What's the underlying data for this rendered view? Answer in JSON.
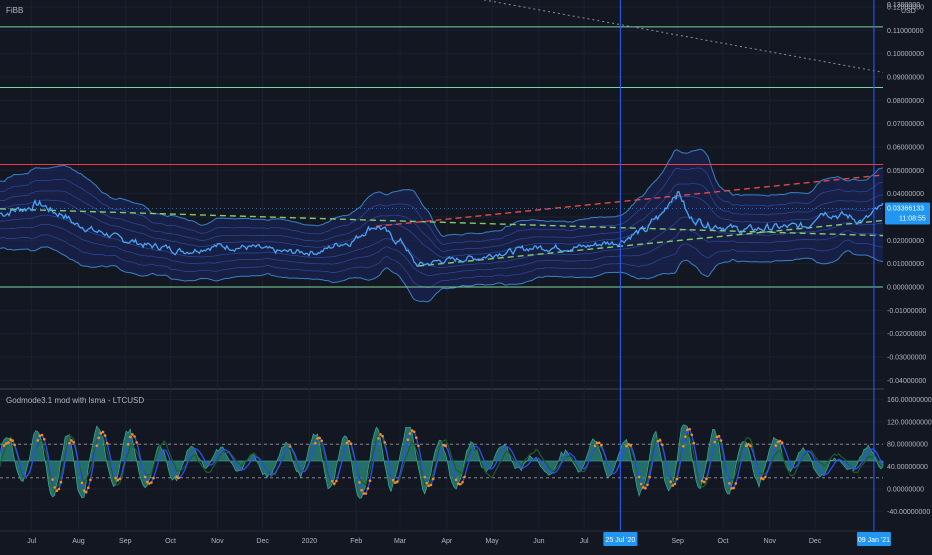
{
  "colors": {
    "background": "#131722",
    "grid": "#1c2030",
    "price_line": "#4aa3f5",
    "band_fill": "#1a2350",
    "band_line": "#2e4fa8",
    "resistance_red": "#f23645",
    "level_green": "#7fd3a0",
    "trend_red_dashed": "#e04848",
    "trend_green_dashed": "#86c96a",
    "crosshair": "#2962ff",
    "axis_tag_bg": "#2196f3",
    "osc_fill": "#2a8c7f",
    "osc_blue": "#2e4ff0",
    "osc_orange": "#ff8c1a",
    "osc_dark_green": "#1e5b2e"
  },
  "top_pane": {
    "indicator_label": "FiBB",
    "currency": "USD",
    "price_axis": [
      "0.12000000",
      "0.11000000",
      "0.10000000",
      "0.09000000",
      "0.08000000",
      "0.07000000",
      "0.06000000",
      "0.05000000",
      "0.04000000",
      "0.03000000",
      "0.02000000",
      "0.01000000",
      "0.00000000",
      "-0.01000000",
      "-0.02000000",
      "-0.03000000",
      "-0.04000000"
    ],
    "top_partial_label": "0.1300000",
    "price_axis_values": [
      0.12,
      0.11,
      0.1,
      0.09,
      0.08,
      0.07,
      0.06,
      0.05,
      0.04,
      0.03,
      0.02,
      0.01,
      0.0,
      -0.01,
      -0.02,
      -0.03,
      -0.04
    ],
    "current_price": "0.03366133",
    "countdown": "11:08:55",
    "horizontal_levels": [
      {
        "value": 0.1115,
        "color": "level_green"
      },
      {
        "value": 0.0855,
        "color": "level_green"
      },
      {
        "value": 0.0525,
        "color": "resistance_red"
      },
      {
        "value": 0.0,
        "color": "level_green"
      }
    ]
  },
  "bottom_pane": {
    "indicator_label": "Godmode3.1 mod with lsma - LTCUSD",
    "axis": [
      "160.00000000",
      "120.00000000",
      "80.00000000",
      "40.00000000",
      "0.00000000",
      "-40.00000000"
    ],
    "axis_values": [
      160,
      120,
      80,
      40,
      0,
      -40
    ],
    "overbought": 80,
    "oversold": 20
  },
  "time_axis": {
    "labels": [
      "Jul",
      "Aug",
      "Sep",
      "Oct",
      "Nov",
      "Dec",
      "2020",
      "Feb",
      "Mar",
      "Apr",
      "May",
      "Jun",
      "Jul",
      "Sep",
      "Oct",
      "Nov",
      "Dec"
    ],
    "crosshair_tags": [
      "25 Jul '20",
      "09 Jan '21"
    ]
  },
  "chart_data": {
    "type": "line",
    "title": "FiBB",
    "symbol": "LTCUSD",
    "currency": "USD",
    "ylim": [
      -0.045,
      0.13
    ],
    "x_range": [
      "2019-06-10",
      "2021-01-15"
    ],
    "price_anchors": [
      {
        "date": "2019-06-10",
        "value": 0.0315
      },
      {
        "date": "2019-06-25",
        "value": 0.0335
      },
      {
        "date": "2019-07-05",
        "value": 0.0355
      },
      {
        "date": "2019-07-20",
        "value": 0.0315
      },
      {
        "date": "2019-08-01",
        "value": 0.0265
      },
      {
        "date": "2019-08-15",
        "value": 0.0235
      },
      {
        "date": "2019-09-01",
        "value": 0.02
      },
      {
        "date": "2019-09-20",
        "value": 0.0175
      },
      {
        "date": "2019-10-10",
        "value": 0.0155
      },
      {
        "date": "2019-11-01",
        "value": 0.0175
      },
      {
        "date": "2019-11-20",
        "value": 0.017
      },
      {
        "date": "2019-12-15",
        "value": 0.015
      },
      {
        "date": "2020-01-05",
        "value": 0.015
      },
      {
        "date": "2020-01-25",
        "value": 0.019
      },
      {
        "date": "2020-02-14",
        "value": 0.026
      },
      {
        "date": "2020-03-01",
        "value": 0.0195
      },
      {
        "date": "2020-03-13",
        "value": 0.0095
      },
      {
        "date": "2020-04-01",
        "value": 0.0115
      },
      {
        "date": "2020-04-20",
        "value": 0.0125
      },
      {
        "date": "2020-05-10",
        "value": 0.015
      },
      {
        "date": "2020-06-01",
        "value": 0.017
      },
      {
        "date": "2020-06-25",
        "value": 0.017
      },
      {
        "date": "2020-07-20",
        "value": 0.019
      },
      {
        "date": "2020-08-10",
        "value": 0.024
      },
      {
        "date": "2020-08-18",
        "value": 0.0295
      },
      {
        "date": "2020-09-01",
        "value": 0.0405
      },
      {
        "date": "2020-09-10",
        "value": 0.029
      },
      {
        "date": "2020-09-25",
        "value": 0.0265
      },
      {
        "date": "2020-10-15",
        "value": 0.0245
      },
      {
        "date": "2020-11-05",
        "value": 0.0255
      },
      {
        "date": "2020-11-25",
        "value": 0.026
      },
      {
        "date": "2020-12-05",
        "value": 0.0325
      },
      {
        "date": "2020-12-20",
        "value": 0.0305
      },
      {
        "date": "2021-01-01",
        "value": 0.0285
      },
      {
        "date": "2021-01-15",
        "value": 0.03366
      }
    ],
    "trendlines": [
      {
        "style": "dashed",
        "color": "trend_green_dashed",
        "from": {
          "date": "2019-06-10",
          "value": 0.0335
        },
        "to": {
          "date": "2021-01-15",
          "value": 0.022
        }
      },
      {
        "style": "dashed",
        "color": "trend_red_dashed",
        "from": {
          "date": "2020-02-14",
          "value": 0.026
        },
        "to": {
          "date": "2021-01-15",
          "value": 0.048
        }
      },
      {
        "style": "dashed",
        "color": "trend_green_dashed",
        "from": {
          "date": "2020-03-13",
          "value": 0.009
        },
        "to": {
          "date": "2021-01-15",
          "value": 0.0285
        }
      },
      {
        "style": "dotted",
        "color": "grid_dotted",
        "from": {
          "date": "2020-02-01",
          "value": 0.133
        },
        "to": {
          "date": "2021-01-15",
          "value": 0.092
        }
      }
    ]
  }
}
